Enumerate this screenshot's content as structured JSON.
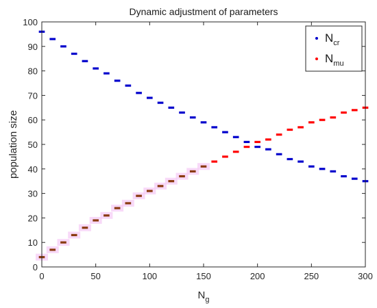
{
  "chart_data": {
    "type": "scatter",
    "title": "Dynamic adjustment of parameters",
    "xlabel": {
      "main": "N",
      "sub": "g"
    },
    "ylabel": "population size",
    "xlim": [
      0,
      300
    ],
    "ylim": [
      0,
      100
    ],
    "xticks": [
      "0",
      "50",
      "100",
      "150",
      "200",
      "250",
      "300"
    ],
    "yticks": [
      "0",
      "10",
      "20",
      "30",
      "40",
      "50",
      "60",
      "70",
      "80",
      "90",
      "100"
    ],
    "grid": false,
    "legend_position": "top-right",
    "series": [
      {
        "name": "N_cr",
        "label_main": "N",
        "label_sub": "cr",
        "color": "#0000cc",
        "x": [
          0,
          10,
          20,
          30,
          40,
          50,
          60,
          70,
          80,
          90,
          100,
          110,
          120,
          130,
          140,
          150,
          160,
          170,
          180,
          190,
          200,
          210,
          220,
          230,
          240,
          250,
          260,
          270,
          280,
          290,
          300
        ],
        "y": [
          96,
          93,
          90,
          87,
          84,
          81,
          79,
          76,
          74,
          71,
          69,
          67,
          65,
          63,
          61,
          59,
          57,
          55,
          53,
          51,
          49,
          48,
          46,
          44,
          43,
          41,
          40,
          39,
          37,
          36,
          35
        ]
      },
      {
        "name": "N_mu",
        "label_main": "N",
        "label_sub": "mu",
        "color": "#ff0000",
        "x": [
          0,
          10,
          20,
          30,
          40,
          50,
          60,
          70,
          80,
          90,
          100,
          110,
          120,
          130,
          140,
          150,
          160,
          170,
          180,
          190,
          200,
          210,
          220,
          230,
          240,
          250,
          260,
          270,
          280,
          290,
          300
        ],
        "y": [
          4,
          7,
          10,
          13,
          16,
          19,
          21,
          24,
          26,
          29,
          31,
          33,
          35,
          37,
          39,
          41,
          43,
          45,
          47,
          49,
          51,
          52,
          54,
          56,
          57,
          59,
          60,
          61,
          63,
          64,
          65
        ]
      }
    ]
  }
}
